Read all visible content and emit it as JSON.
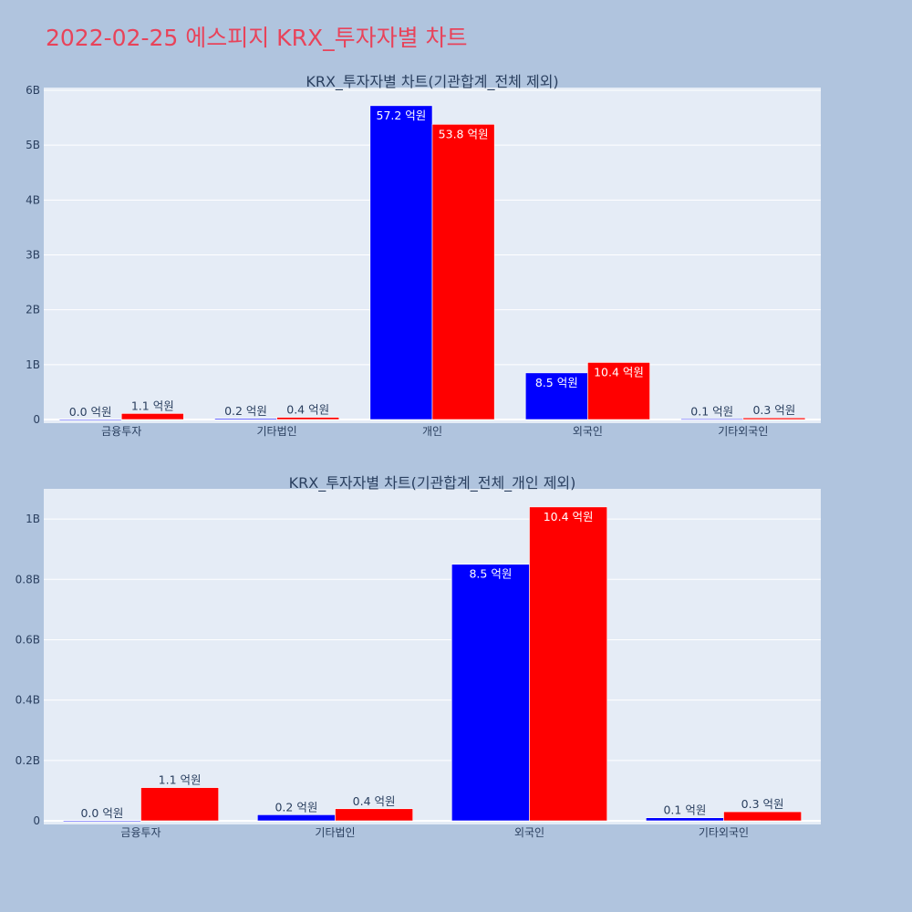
{
  "page": {
    "title": "2022-02-25 에스피지 KRX_투자자별 차트"
  },
  "colors": {
    "series_a": "#0000ff",
    "series_b": "#ff0000",
    "title": "#e8435a",
    "background": "#b0c4de",
    "plot_background": "#e5ecf6",
    "text": "#2a3f5f"
  },
  "chart_data": [
    {
      "type": "bar",
      "title": "KRX_투자자별 차트(기관합계_전체 제외)",
      "categories": [
        "금융투자",
        "기타법인",
        "개인",
        "외국인",
        "기타외국인"
      ],
      "series": [
        {
          "color": "#0000ff",
          "values": [
            0.0,
            20000000,
            5720000000,
            850000000,
            10000000
          ],
          "labels": [
            "0.0 억원",
            "0.2 억원",
            "57.2 억원",
            "8.5 억원",
            "0.1 억원"
          ]
        },
        {
          "color": "#ff0000",
          "values": [
            110000000,
            40000000,
            5380000000,
            1040000000,
            30000000
          ],
          "labels": [
            "1.1 억원",
            "0.4 억원",
            "53.8 억원",
            "10.4 억원",
            "0.3 억원"
          ]
        }
      ],
      "yticks": [
        {
          "value": 0,
          "label": "0"
        },
        {
          "value": 1000000000,
          "label": "1B"
        },
        {
          "value": 2000000000,
          "label": "2B"
        },
        {
          "value": 3000000000,
          "label": "3B"
        },
        {
          "value": 4000000000,
          "label": "4B"
        },
        {
          "value": 5000000000,
          "label": "5B"
        },
        {
          "value": 6000000000,
          "label": "6B"
        }
      ],
      "ylim": [
        0,
        6050000000
      ],
      "grid": true
    },
    {
      "type": "bar",
      "title": "KRX_투자자별 차트(기관합계_전체_개인 제외)",
      "categories": [
        "금융투자",
        "기타법인",
        "외국인",
        "기타외국인"
      ],
      "series": [
        {
          "color": "#0000ff",
          "values": [
            0.0,
            20000000,
            850000000,
            10000000
          ],
          "labels": [
            "0.0 억원",
            "0.2 억원",
            "8.5 억원",
            "0.1 억원"
          ]
        },
        {
          "color": "#ff0000",
          "values": [
            110000000,
            40000000,
            1040000000,
            30000000
          ],
          "labels": [
            "1.1 억원",
            "0.4 억원",
            "10.4 억원",
            "0.3 억원"
          ]
        }
      ],
      "yticks": [
        {
          "value": 0,
          "label": "0"
        },
        {
          "value": 200000000,
          "label": "0.2B"
        },
        {
          "value": 400000000,
          "label": "0.4B"
        },
        {
          "value": 600000000,
          "label": "0.6B"
        },
        {
          "value": 800000000,
          "label": "0.8B"
        },
        {
          "value": 1000000000,
          "label": "1B"
        }
      ],
      "ylim": [
        0,
        1100000000
      ],
      "grid": true
    }
  ]
}
